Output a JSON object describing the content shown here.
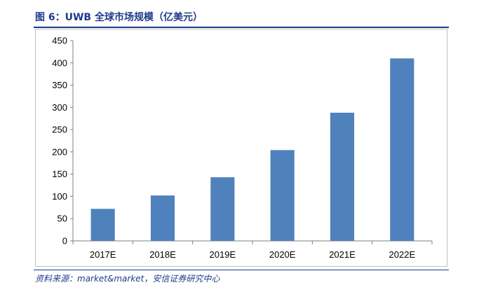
{
  "header": {
    "title": "图 6：UWB 全球市场规模（亿美元）"
  },
  "footer": {
    "source": "资料来源：market&market，安信证券研究中心"
  },
  "colors": {
    "bar": "#4f81bd",
    "accent": "#1f3a8a",
    "axis": "#7f7f7f"
  },
  "chart_data": {
    "type": "bar",
    "categories": [
      "2017E",
      "2018E",
      "2019E",
      "2020E",
      "2021E",
      "2022E"
    ],
    "values": [
      72,
      102,
      143,
      204,
      288,
      410
    ],
    "ylim": [
      0,
      450
    ],
    "yticks": [
      0,
      50,
      100,
      150,
      200,
      250,
      300,
      350,
      400,
      450
    ],
    "grid": false,
    "legend": "none"
  }
}
